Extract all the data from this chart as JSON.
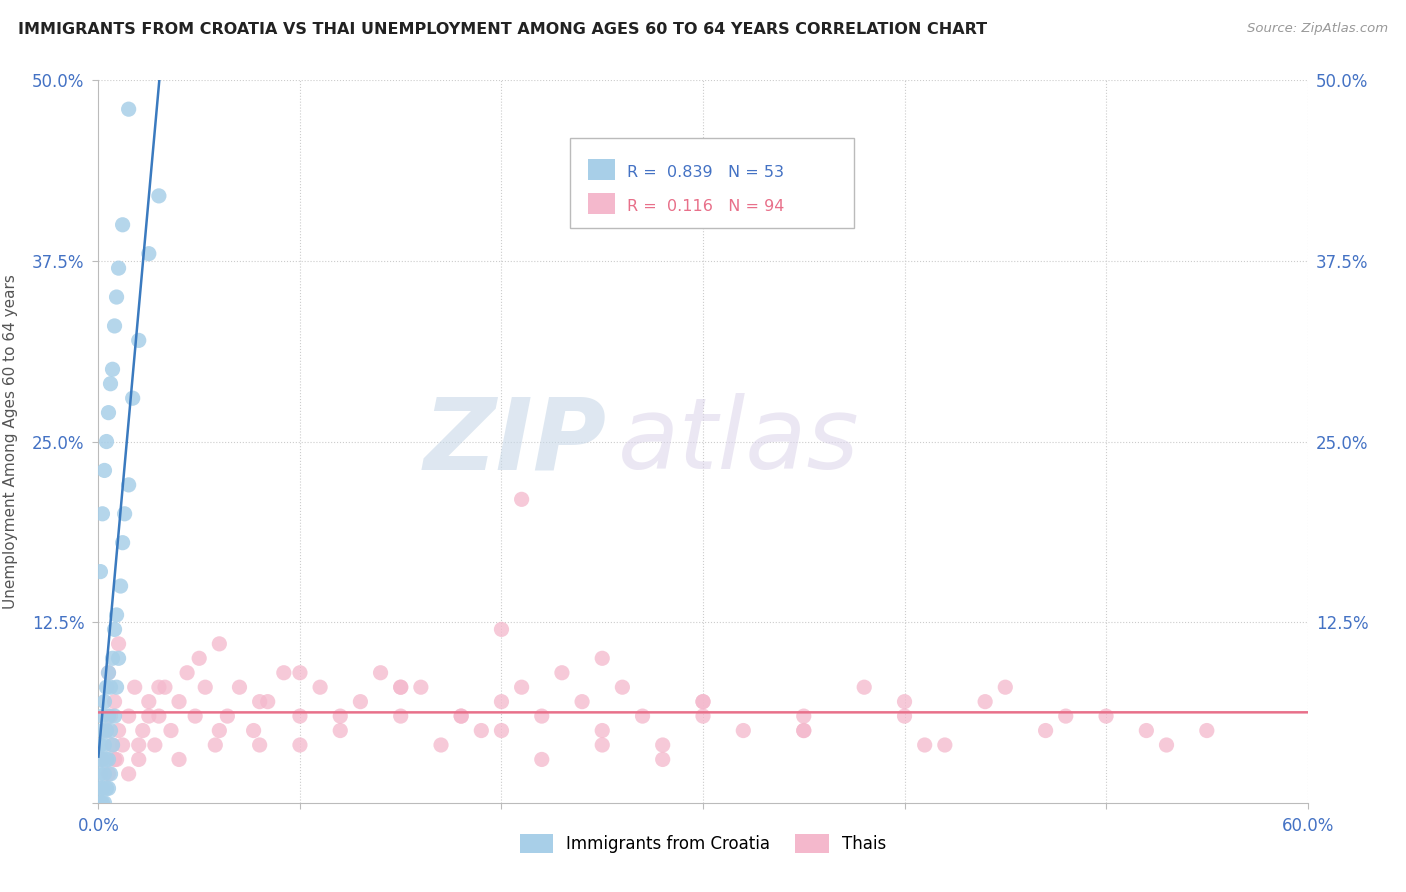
{
  "title": "IMMIGRANTS FROM CROATIA VS THAI UNEMPLOYMENT AMONG AGES 60 TO 64 YEARS CORRELATION CHART",
  "source": "Source: ZipAtlas.com",
  "ylabel": "Unemployment Among Ages 60 to 64 years",
  "xlim": [
    0.0,
    0.6
  ],
  "ylim": [
    0.0,
    0.5
  ],
  "xticks": [
    0.0,
    0.1,
    0.2,
    0.3,
    0.4,
    0.5,
    0.6
  ],
  "yticks": [
    0.0,
    0.125,
    0.25,
    0.375,
    0.5
  ],
  "xticklabels": [
    "0.0%",
    "",
    "",
    "",
    "",
    "",
    "60.0%"
  ],
  "yticklabels": [
    "",
    "12.5%",
    "25.0%",
    "37.5%",
    "50.0%"
  ],
  "color_croatia": "#a8cfe8",
  "color_thai": "#f4b8cc",
  "color_trendline_croatia": "#3a7abf",
  "color_trendline_thai": "#e8708a",
  "watermark_zip": "ZIP",
  "watermark_atlas": "atlas",
  "croatia_x": [
    0.001,
    0.001,
    0.001,
    0.001,
    0.001,
    0.002,
    0.002,
    0.002,
    0.002,
    0.002,
    0.003,
    0.003,
    0.003,
    0.003,
    0.004,
    0.004,
    0.004,
    0.004,
    0.005,
    0.005,
    0.005,
    0.005,
    0.006,
    0.006,
    0.006,
    0.007,
    0.007,
    0.008,
    0.008,
    0.009,
    0.009,
    0.01,
    0.011,
    0.012,
    0.013,
    0.015,
    0.017,
    0.02,
    0.025,
    0.03,
    0.001,
    0.002,
    0.003,
    0.004,
    0.005,
    0.006,
    0.007,
    0.008,
    0.009,
    0.01,
    0.012,
    0.015
  ],
  "croatia_y": [
    0.0,
    0.01,
    0.02,
    0.03,
    0.04,
    0.0,
    0.01,
    0.03,
    0.05,
    0.06,
    0.0,
    0.02,
    0.04,
    0.07,
    0.01,
    0.03,
    0.05,
    0.08,
    0.01,
    0.03,
    0.06,
    0.09,
    0.02,
    0.05,
    0.08,
    0.04,
    0.1,
    0.06,
    0.12,
    0.08,
    0.13,
    0.1,
    0.15,
    0.18,
    0.2,
    0.22,
    0.28,
    0.32,
    0.38,
    0.42,
    0.16,
    0.2,
    0.23,
    0.25,
    0.27,
    0.29,
    0.3,
    0.33,
    0.35,
    0.37,
    0.4,
    0.48
  ],
  "thai_x": [
    0.002,
    0.004,
    0.005,
    0.006,
    0.007,
    0.008,
    0.009,
    0.01,
    0.012,
    0.015,
    0.018,
    0.02,
    0.022,
    0.025,
    0.028,
    0.03,
    0.033,
    0.036,
    0.04,
    0.044,
    0.048,
    0.053,
    0.058,
    0.064,
    0.07,
    0.077,
    0.084,
    0.092,
    0.1,
    0.11,
    0.12,
    0.13,
    0.14,
    0.15,
    0.16,
    0.17,
    0.18,
    0.19,
    0.2,
    0.21,
    0.22,
    0.23,
    0.24,
    0.25,
    0.26,
    0.27,
    0.28,
    0.3,
    0.32,
    0.35,
    0.38,
    0.41,
    0.44,
    0.47,
    0.5,
    0.53,
    0.55,
    0.005,
    0.008,
    0.01,
    0.015,
    0.02,
    0.025,
    0.03,
    0.04,
    0.06,
    0.08,
    0.1,
    0.12,
    0.15,
    0.2,
    0.25,
    0.3,
    0.35,
    0.4,
    0.28,
    0.35,
    0.42,
    0.48,
    0.05,
    0.15,
    0.25,
    0.2,
    0.3,
    0.1,
    0.06,
    0.4,
    0.45,
    0.52,
    0.08,
    0.18,
    0.22
  ],
  "thai_y": [
    0.03,
    0.05,
    0.02,
    0.06,
    0.04,
    0.07,
    0.03,
    0.05,
    0.04,
    0.06,
    0.08,
    0.03,
    0.05,
    0.07,
    0.04,
    0.06,
    0.08,
    0.05,
    0.07,
    0.09,
    0.06,
    0.08,
    0.04,
    0.06,
    0.08,
    0.05,
    0.07,
    0.09,
    0.06,
    0.08,
    0.05,
    0.07,
    0.09,
    0.06,
    0.08,
    0.04,
    0.06,
    0.05,
    0.07,
    0.08,
    0.06,
    0.09,
    0.07,
    0.05,
    0.08,
    0.06,
    0.04,
    0.07,
    0.05,
    0.06,
    0.08,
    0.04,
    0.07,
    0.05,
    0.06,
    0.04,
    0.05,
    0.09,
    0.03,
    0.11,
    0.02,
    0.04,
    0.06,
    0.08,
    0.03,
    0.05,
    0.07,
    0.04,
    0.06,
    0.08,
    0.05,
    0.04,
    0.06,
    0.05,
    0.07,
    0.03,
    0.05,
    0.04,
    0.06,
    0.1,
    0.08,
    0.1,
    0.12,
    0.07,
    0.09,
    0.11,
    0.06,
    0.08,
    0.05,
    0.04,
    0.06,
    0.03
  ],
  "thai_outlier_x": [
    0.21
  ],
  "thai_outlier_y": [
    0.21
  ]
}
